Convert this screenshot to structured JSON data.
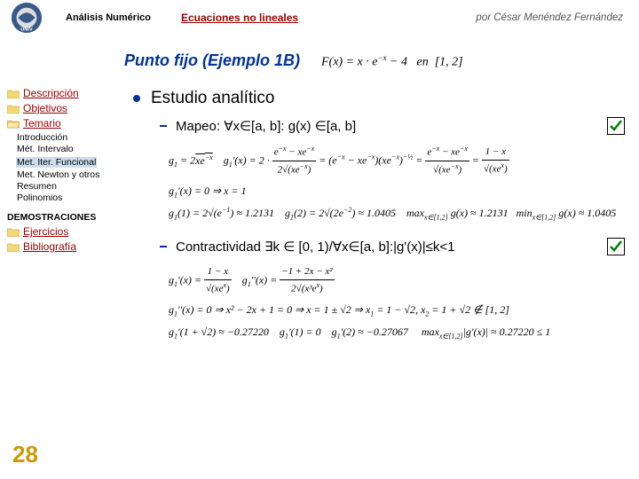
{
  "header": {
    "left": "Análisis Numérico",
    "mid": "Ecuaciones no lineales",
    "right": "por César Menéndez Fernández"
  },
  "title": "Punto fijo (Ejemplo 1B)",
  "title_formula_html": "F(x) = x · e<sup>−x</sup> − 4 &nbsp; en &nbsp;[1, 2]",
  "sidebar": {
    "items": [
      {
        "label": "Descripción",
        "open": false
      },
      {
        "label": "Objetivos",
        "open": false
      },
      {
        "label": "Temario",
        "open": true
      }
    ],
    "subitems": [
      {
        "label": "Introducción",
        "hl": false
      },
      {
        "label": "Mét. Intervalo",
        "hl": false
      },
      {
        "label": "Met. Iter. Funcional",
        "hl": true
      },
      {
        "label": "Met. Newton y otros",
        "hl": false
      },
      {
        "label": "Resumen",
        "hl": false
      },
      {
        "label": "Polinomios",
        "hl": false
      }
    ],
    "demo": "DEMOSTRACIONES",
    "items2": [
      {
        "label": "Ejercicios"
      },
      {
        "label": "Bibliografía"
      }
    ]
  },
  "content": {
    "heading": "Estudio analítico",
    "bullet1": "Mapeo: ∀x∈[a, b]: g(x) ∈[a, b]",
    "bullet2": "Contractividad ∃k ∈ [0, 1)/∀x∈[a, b]:|g'(x)|≤k<1"
  },
  "math": {
    "line1a_html": "g<sub>1</sub> = 2<span class='rad'>xe<sup>−x</sup></span>&nbsp;&nbsp;&nbsp; g<sub>1</sub>'(x) = 2 · <span class='frac'><span class='num'>e<sup>−x</sup> − xe<sup>−x</sup></span><span class='den'>2√(xe<sup>−x</sup>)</span></span> = (e<sup>−x</sup> − xe<sup>−x</sup>)(xe<sup>−x</sup>)<sup>−½</sup> = <span class='frac'><span class='num'>e<sup>−x</sup> − xe<sup>−x</sup></span><span class='den'>√(xe<sup>−x</sup>)</span></span> = <span class='frac'><span class='num'>1 − x</span><span class='den'>√(xe<sup>x</sup>)</span></span>",
    "line1b_html": "g<sub>1</sub>'(x) = 0 ⇒ x = 1",
    "line1c_html": "g<sub>1</sub>(1) = 2√(e<sup>−1</sup>) ≈ 1.2131 &nbsp;&nbsp; g<sub>1</sub>(2) = 2√(2e<sup>−2</sup>) ≈ 1.0405 &nbsp;&nbsp; max<sub>x∈[1,2]</sub> g(x) ≈ 1.2131 &nbsp; min<sub>x∈[1,2]</sub> g(x) ≈ 1.0405",
    "line2a_html": "g<sub>1</sub>'(x) = <span class='frac'><span class='num'>1 − x</span><span class='den'>√(xe<sup>x</sup>)</span></span> &nbsp;&nbsp; g<sub>1</sub>''(x) = <span class='frac'><span class='num'>−1 + 2x − x²</span><span class='den'>2√(x³e<sup>x</sup>)</span></span>",
    "line2b_html": "g<sub>1</sub>''(x) = 0 ⇒ x² − 2x + 1 = 0 ⇒ x = 1 ± √2 ⇒ x<sub>1</sub> = 1 − √2, x<sub>2</sub> = 1 + √2 ∉ [1, 2]",
    "line2c_html": "g<sub>1</sub>'(1 + √2) ≈ −0.27220 &nbsp;&nbsp; g<sub>1</sub>'(1) = 0 &nbsp;&nbsp; g<sub>1</sub>'(2) ≈ −0.27067 &nbsp;&nbsp;&nbsp; max<sub>x∈[1,2]</sub>|g'(x)| ≈ 0.27220 ≤ 1"
  },
  "page_number": "28"
}
